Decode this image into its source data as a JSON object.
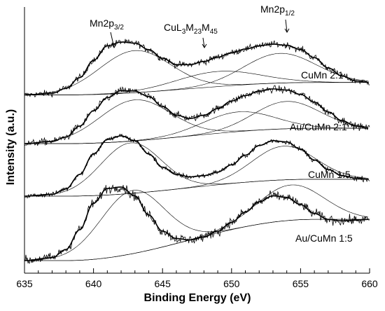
{
  "chart_data": {
    "type": "line",
    "xlabel": "Binding Energy (eV)",
    "ylabel": "Intensity (a.u.)",
    "xlim": [
      635,
      660
    ],
    "x_ticks": [
      "635",
      "640",
      "645",
      "650",
      "655",
      "660"
    ],
    "grid": false,
    "legend": "none",
    "annotations": [
      {
        "base": "Mn2p",
        "sub": "3/2",
        "x": 642.5
      },
      {
        "parts": [
          "CuL",
          "3",
          "M",
          "23",
          "M",
          "45"
        ],
        "x": 649.5
      },
      {
        "base": "Mn2p",
        "sub": "1/2",
        "x": 653.5
      }
    ],
    "series": [
      {
        "name": "CuMn 2:1",
        "envelope": {
          "x": [
            635,
            637,
            638,
            639,
            640,
            641,
            642,
            643,
            644,
            645,
            646,
            647,
            648,
            649,
            650,
            651,
            652,
            653,
            654,
            655,
            656,
            657,
            658,
            659,
            660
          ],
          "y": [
            0.02,
            0.05,
            0.14,
            0.34,
            0.66,
            0.93,
            1.0,
            0.98,
            0.86,
            0.7,
            0.58,
            0.58,
            0.64,
            0.72,
            0.8,
            0.87,
            0.93,
            0.96,
            0.94,
            0.86,
            0.71,
            0.52,
            0.37,
            0.28,
            0.25
          ]
        },
        "components": [
          {
            "center": 643.0,
            "height": 0.78,
            "width": 2.6
          },
          {
            "center": 649.0,
            "height": 0.28,
            "width": 3.0
          },
          {
            "center": 653.5,
            "height": 0.55,
            "width": 2.6
          }
        ]
      },
      {
        "name": "Au/CuMn 2:1",
        "envelope": {
          "x": [
            635,
            637,
            638,
            639,
            640,
            641,
            642,
            643,
            644,
            645,
            646,
            647,
            648,
            649,
            650,
            651,
            652,
            653,
            654,
            655,
            656,
            657,
            658,
            659,
            660
          ],
          "y": [
            0.0,
            0.04,
            0.12,
            0.32,
            0.6,
            0.84,
            0.97,
            0.96,
            0.86,
            0.68,
            0.52,
            0.46,
            0.52,
            0.64,
            0.78,
            0.88,
            0.96,
            1.0,
            0.98,
            0.9,
            0.76,
            0.58,
            0.42,
            0.32,
            0.28
          ]
        },
        "components": [
          {
            "center": 643.0,
            "height": 0.75,
            "width": 2.6
          },
          {
            "center": 650.5,
            "height": 0.36,
            "width": 2.6
          },
          {
            "center": 654.0,
            "height": 0.5,
            "width": 2.4
          }
        ]
      },
      {
        "name": "CuMn 1:5",
        "envelope": {
          "x": [
            635,
            637,
            638,
            639,
            640,
            641,
            642,
            643,
            644,
            645,
            646,
            647,
            648,
            649,
            650,
            651,
            652,
            653,
            654,
            655,
            656,
            657,
            658,
            659,
            660
          ],
          "y": [
            0.0,
            0.03,
            0.12,
            0.36,
            0.7,
            0.94,
            1.0,
            0.92,
            0.7,
            0.48,
            0.36,
            0.32,
            0.34,
            0.4,
            0.52,
            0.68,
            0.84,
            0.92,
            0.9,
            0.78,
            0.6,
            0.44,
            0.34,
            0.3,
            0.28
          ]
        },
        "components": [
          {
            "center": 642.7,
            "height": 0.84,
            "width": 2.2
          },
          {
            "center": 653.8,
            "height": 0.56,
            "width": 2.3
          }
        ]
      },
      {
        "name": "Au/CuMn 1:5",
        "envelope": {
          "x": [
            635,
            637,
            638,
            639,
            640,
            641,
            642,
            643,
            644,
            645,
            646,
            647,
            648,
            649,
            650,
            651,
            652,
            653,
            654,
            655,
            656,
            657,
            658,
            659,
            660
          ],
          "y": [
            0.0,
            0.04,
            0.15,
            0.42,
            0.78,
            0.98,
            1.0,
            0.88,
            0.62,
            0.4,
            0.3,
            0.28,
            0.32,
            0.4,
            0.52,
            0.66,
            0.8,
            0.88,
            0.86,
            0.76,
            0.64,
            0.56,
            0.54,
            0.55,
            0.56
          ]
        },
        "components": [
          {
            "center": 642.8,
            "height": 0.86,
            "width": 2.3
          },
          {
            "center": 654.3,
            "height": 0.48,
            "width": 2.4
          }
        ]
      }
    ]
  }
}
